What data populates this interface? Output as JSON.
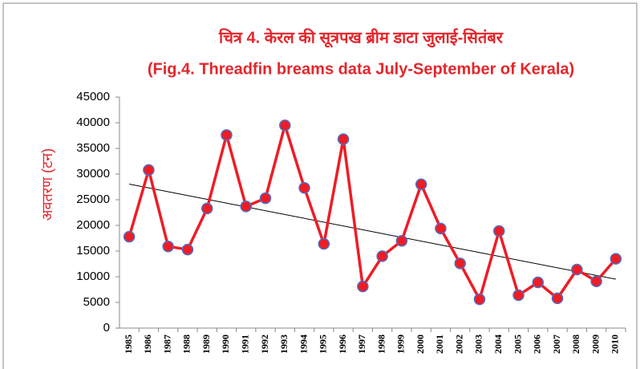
{
  "chart_data": {
    "type": "line",
    "title": "चित्र 4. केरल की  सूत्रपख ब्रीम डाटा जुलाई-सितंबर",
    "subtitle": "(Fig.4. Threadfin breams data July-September of Kerala)",
    "y_label": "अवतरण (टन)",
    "categories": [
      "1985",
      "1986",
      "1987",
      "1988",
      "1989",
      "1990",
      "1991",
      "1992",
      "1993",
      "1994",
      "1995",
      "1996",
      "1997",
      "1998",
      "1999",
      "2000",
      "2001",
      "2002",
      "2003",
      "2004",
      "2005",
      "2006",
      "2007",
      "2008",
      "2009",
      "2010"
    ],
    "series": [
      {
        "name": "Threadfin breams",
        "color": "#ee1c25",
        "marker_edge": "#4f6fc4",
        "values": [
          17800,
          30800,
          15900,
          15300,
          23300,
          37600,
          23700,
          25300,
          39500,
          27300,
          16400,
          36800,
          8100,
          14000,
          17000,
          28000,
          19400,
          12600,
          5600,
          18900,
          6400,
          8900,
          5800,
          11400,
          9100,
          13500
        ]
      }
    ],
    "trendline": true,
    "ylim": [
      0,
      45000
    ],
    "yticks": [
      0,
      5000,
      10000,
      15000,
      20000,
      25000,
      30000,
      35000,
      40000,
      45000
    ]
  }
}
